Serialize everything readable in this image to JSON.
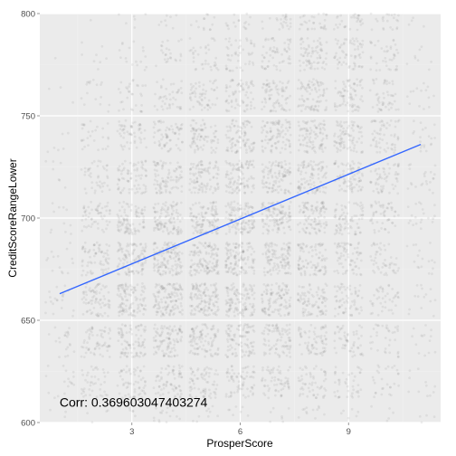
{
  "chart_data": {
    "type": "scatter",
    "title": "",
    "xlabel": "ProsperScore",
    "ylabel": "CreditScoreRangeLower",
    "xlim": [
      0.45,
      11.55
    ],
    "ylim": [
      600,
      800
    ],
    "x_ticks": [
      3,
      6,
      9
    ],
    "x_tick_labels": [
      "3",
      "6",
      "9"
    ],
    "y_ticks": [
      600,
      650,
      700,
      750,
      800
    ],
    "y_tick_labels": [
      "600",
      "650",
      "700",
      "750",
      "800"
    ],
    "grid": true,
    "legend": "none",
    "jitter": {
      "x": 0.4,
      "y": 8
    },
    "x_categories": [
      1,
      2,
      3,
      4,
      5,
      6,
      7,
      8,
      9,
      10,
      11
    ],
    "y_levels": [
      600,
      620,
      640,
      660,
      680,
      700,
      720,
      740,
      760,
      780,
      800
    ],
    "density": [
      [
        0.04,
        0.1,
        0.12,
        0.14,
        0.12,
        0.12,
        0.12,
        0.12,
        0.1,
        0.08,
        0.04
      ],
      [
        0.12,
        0.3,
        0.42,
        0.48,
        0.5,
        0.5,
        0.45,
        0.4,
        0.3,
        0.2,
        0.08
      ],
      [
        0.15,
        0.45,
        0.62,
        0.7,
        0.7,
        0.68,
        0.6,
        0.5,
        0.38,
        0.25,
        0.1
      ],
      [
        0.14,
        0.55,
        0.78,
        0.92,
        0.9,
        0.8,
        0.75,
        0.62,
        0.45,
        0.3,
        0.1
      ],
      [
        0.1,
        0.5,
        0.75,
        0.9,
        0.88,
        0.85,
        0.78,
        0.66,
        0.5,
        0.35,
        0.12
      ],
      [
        0.08,
        0.4,
        0.65,
        0.78,
        0.8,
        0.82,
        0.78,
        0.7,
        0.55,
        0.38,
        0.14
      ],
      [
        0.05,
        0.3,
        0.52,
        0.62,
        0.68,
        0.72,
        0.72,
        0.68,
        0.58,
        0.42,
        0.16
      ],
      [
        0.04,
        0.2,
        0.38,
        0.48,
        0.55,
        0.62,
        0.66,
        0.66,
        0.6,
        0.42,
        0.14
      ],
      [
        0.02,
        0.12,
        0.22,
        0.3,
        0.4,
        0.48,
        0.55,
        0.6,
        0.52,
        0.35,
        0.1
      ],
      [
        0.01,
        0.06,
        0.12,
        0.18,
        0.26,
        0.34,
        0.42,
        0.52,
        0.45,
        0.28,
        0.06
      ],
      [
        0.0,
        0.03,
        0.08,
        0.12,
        0.18,
        0.25,
        0.32,
        0.42,
        0.38,
        0.22,
        0.04
      ]
    ],
    "point_color": "#000000",
    "point_alpha": 0.06,
    "trend_line": {
      "x": [
        1,
        11
      ],
      "y": [
        663,
        736
      ],
      "color": "#3366FF"
    },
    "annotation": {
      "text": "Corr: 0.369603047403274",
      "x": 1.75,
      "y": 610
    },
    "panel_background": "#EBEBEB",
    "grid_major_color": "#FFFFFF",
    "grid_minor_color": "#F2F2F2"
  }
}
